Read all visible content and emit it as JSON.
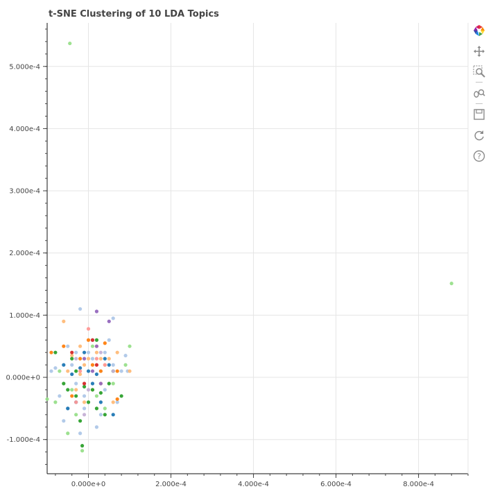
{
  "chart_data": {
    "type": "scatter",
    "title": "t-SNE Clustering of 10 LDA Topics",
    "xlabel": "",
    "ylabel": "",
    "xlim": [
      -0.0001,
      0.00092
    ],
    "ylim": [
      -0.000155,
      0.00057
    ],
    "grid": true,
    "x_ticks": [
      0,
      0.0002,
      0.0004,
      0.0006,
      0.0008
    ],
    "x_tick_labels": [
      "0.000e+0",
      "2.000e-4",
      "4.000e-4",
      "6.000e-4",
      "8.000e-4"
    ],
    "y_ticks": [
      -0.0001,
      0,
      0.0001,
      0.0002,
      0.0003,
      0.0004,
      0.0005
    ],
    "y_tick_labels": [
      "-1.000e-4",
      "0.000e+0",
      "1.000e-4",
      "2.000e-4",
      "3.000e-4",
      "4.000e-4",
      "5.000e-4"
    ],
    "topic_colors": [
      "#1f77b4",
      "#aec7e8",
      "#ff7f0e",
      "#ffbb78",
      "#2ca02c",
      "#98df8a",
      "#d62728",
      "#ff9896",
      "#9467bd",
      "#c5b0d5"
    ],
    "series": [
      {
        "color": "#aec7e8",
        "points": [
          [
            -2e-05,
            0.00011
          ],
          [
            6e-05,
            9.5e-05
          ],
          [
            -5e-05,
            5e-05
          ],
          [
            9e-05,
            3.5e-05
          ],
          [
            -8e-05,
            1.5e-05
          ],
          [
            1e-05,
            3e-05
          ],
          [
            -3e-05,
            -1e-05
          ],
          [
            4e-05,
            -2e-05
          ],
          [
            -1e-05,
            -5e-05
          ],
          [
            2e-05,
            -8e-05
          ],
          [
            -6e-05,
            -7e-05
          ],
          [
            5e-05,
            6e-05
          ],
          [
            -4e-05,
            2e-05
          ],
          [
            3e-05,
            1e-05
          ],
          [
            -1e-05,
            -3e-05
          ],
          [
            7e-05,
            -4e-05
          ],
          [
            -7e-05,
            -3e-05
          ],
          [
            0.0,
            4e-05
          ],
          [
            8e-05,
            1e-05
          ],
          [
            -9e-05,
            1e-05
          ],
          [
            3e-05,
            -6e-05
          ],
          [
            -2e-05,
            -9e-05
          ],
          [
            1e-05,
            6e-05
          ],
          [
            -5e-05,
            -5e-05
          ],
          [
            6e-05,
            2e-05
          ],
          [
            9.5e-05,
            1e-05
          ],
          [
            -3e-05,
            4e-05
          ],
          [
            4e-05,
            4e-05
          ]
        ]
      },
      {
        "color": "#ffbb78",
        "points": [
          [
            -6e-05,
            9e-05
          ],
          [
            -0.00012,
            6e-05
          ],
          [
            0.0001,
            1e-05
          ],
          [
            5e-05,
            3e-05
          ],
          [
            -1e-05,
            2e-05
          ],
          [
            2e-05,
            4e-05
          ],
          [
            -4e-05,
            3.5e-05
          ],
          [
            3e-05,
            -1e-05
          ],
          [
            -2e-05,
            5e-06
          ],
          [
            1e-05,
            -2e-05
          ],
          [
            6e-05,
            -4e-05
          ],
          [
            -3e-05,
            -2e-05
          ],
          [
            4e-05,
            2e-05
          ],
          [
            -5e-05,
            1e-05
          ],
          [
            0.0,
            3e-05
          ],
          [
            2e-05,
            5e-05
          ],
          [
            -2e-05,
            5e-05
          ],
          [
            7e-05,
            4e-05
          ],
          [
            -1e-05,
            -4e-05
          ],
          [
            3e-05,
            3e-05
          ]
        ]
      },
      {
        "color": "#98df8a",
        "points": [
          [
            -4.5e-05,
            0.000537
          ],
          [
            0.00088,
            0.000151
          ],
          [
            -0.0001,
            -3.5e-05
          ],
          [
            -5e-05,
            -9e-05
          ],
          [
            -1.5e-05,
            -0.000118
          ],
          [
            9e-05,
            2e-05
          ],
          [
            -7e-05,
            1e-05
          ],
          [
            2e-05,
            -3e-05
          ],
          [
            -3e-05,
            -6e-05
          ],
          [
            4e-05,
            -5e-05
          ],
          [
            -8e-05,
            -4e-05
          ],
          [
            6e-05,
            -1e-05
          ],
          [
            1e-05,
            5e-05
          ],
          [
            -4e-05,
            -2e-05
          ],
          [
            0.0001,
            5e-05
          ]
        ]
      },
      {
        "color": "#2ca02c",
        "points": [
          [
            -5e-05,
            -2e-05
          ],
          [
            -3e-05,
            -3e-05
          ],
          [
            -1e-05,
            -1.5e-05
          ],
          [
            1e-05,
            -2e-05
          ],
          [
            3e-05,
            -2.5e-05
          ],
          [
            5e-05,
            -1e-05
          ],
          [
            -6e-05,
            -1e-05
          ],
          [
            -8e-05,
            4e-05
          ],
          [
            8e-05,
            -3e-05
          ],
          [
            -2e-05,
            -7e-05
          ],
          [
            4e-05,
            -6e-05
          ],
          [
            2e-05,
            6e-05
          ],
          [
            -4e-05,
            3e-05
          ],
          [
            0.0,
            -4e-05
          ],
          [
            -1.5e-05,
            -0.00011
          ],
          [
            6e-05,
            1e-05
          ],
          [
            -3e-05,
            1e-05
          ],
          [
            2e-05,
            -5e-05
          ]
        ]
      },
      {
        "color": "#1f77b4",
        "points": [
          [
            -6e-05,
            2e-05
          ],
          [
            -4e-05,
            5e-06
          ],
          [
            -2e-05,
            1.5e-05
          ],
          [
            0.0,
            1e-05
          ],
          [
            2e-05,
            5e-06
          ],
          [
            5e-05,
            2e-05
          ],
          [
            6e-05,
            -6e-05
          ],
          [
            -3e-05,
            -4e-05
          ],
          [
            3e-05,
            -4e-05
          ],
          [
            -1e-05,
            4e-05
          ],
          [
            4e-05,
            3e-05
          ],
          [
            -5e-05,
            -5e-05
          ],
          [
            1e-05,
            -1e-05
          ]
        ]
      },
      {
        "color": "#ff7f0e",
        "points": [
          [
            -0.00011,
            1e-05
          ],
          [
            -9e-05,
            4e-05
          ],
          [
            7e-05,
            -3.5e-05
          ],
          [
            -4e-05,
            -3e-05
          ],
          [
            1e-05,
            2e-05
          ],
          [
            4e-05,
            5.5e-05
          ],
          [
            -2e-05,
            3e-05
          ],
          [
            3e-05,
            1e-05
          ],
          [
            -6e-05,
            5e-05
          ],
          [
            7e-05,
            1e-05
          ],
          [
            0.0,
            6e-05
          ]
        ]
      },
      {
        "color": "#9467bd",
        "points": [
          [
            2e-05,
            0.000106
          ],
          [
            5e-05,
            9e-05
          ],
          [
            2e-05,
            5e-05
          ],
          [
            1e-05,
            1e-05
          ],
          [
            -1e-05,
            3e-05
          ],
          [
            3e-05,
            -1e-05
          ]
        ]
      },
      {
        "color": "#ff9896",
        "points": [
          [
            0.0,
            7.8e-05
          ],
          [
            4e-05,
            2e-05
          ],
          [
            -3e-05,
            -4e-05
          ],
          [
            2e-05,
            3e-05
          ],
          [
            -2e-05,
            1e-05
          ]
        ]
      },
      {
        "color": "#c5b0d5",
        "points": [
          [
            -3e-05,
            3e-05
          ],
          [
            6e-05,
            1e-05
          ],
          [
            0.0,
            -2e-05
          ],
          [
            3e-05,
            4e-05
          ],
          [
            -1e-05,
            -6e-05
          ]
        ]
      },
      {
        "color": "#d62728",
        "points": [
          [
            -4e-05,
            4e-05
          ],
          [
            1e-05,
            6e-05
          ],
          [
            2e-05,
            2e-05
          ],
          [
            -1e-05,
            -1e-05
          ]
        ]
      }
    ]
  },
  "toolbar": {
    "tools": [
      "bokeh-logo",
      "pan-icon",
      "box-zoom-icon",
      "wheel-zoom-icon",
      "save-icon",
      "reset-icon",
      "help-icon"
    ]
  }
}
